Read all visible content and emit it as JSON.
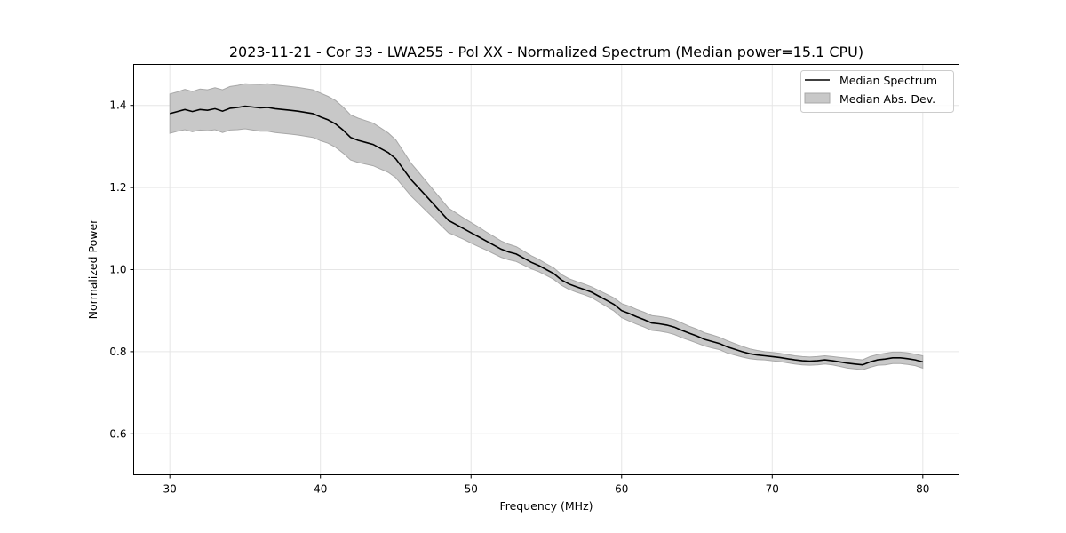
{
  "chart_data": {
    "type": "line",
    "title": "2023-11-21 - Cor 33 - LWA255 - Pol XX - Normalized Spectrum (Median power=15.1 CPU)",
    "xlabel": "Frequency (MHz)",
    "ylabel": "Normalized Power",
    "xlim": [
      27.6,
      82.4
    ],
    "ylim": [
      0.5,
      1.5
    ],
    "xticks": [
      30,
      40,
      50,
      60,
      70,
      80
    ],
    "yticks": [
      0.6,
      0.8,
      1.0,
      1.2,
      1.4
    ],
    "xtick_labels": [
      "30",
      "40",
      "50",
      "60",
      "70",
      "80"
    ],
    "ytick_labels": [
      "0.6",
      "0.8",
      "1.0",
      "1.2",
      "1.4"
    ],
    "grid": true,
    "legend_position": "top-right",
    "legend": [
      "Median Spectrum",
      "Median Abs. Dev."
    ],
    "colors": {
      "line": "#000000",
      "band": "#c8c8c8",
      "band_edge": "#a8a8a8",
      "grid": "#e6e6e6",
      "axes": "#000000"
    },
    "series": [
      {
        "name": "Median Spectrum",
        "x": [
          30,
          30.5,
          31,
          31.5,
          32,
          32.5,
          33,
          33.5,
          34,
          34.5,
          35,
          35.5,
          36,
          36.5,
          37,
          37.5,
          38,
          38.5,
          39,
          39.5,
          40,
          40.5,
          41,
          41.5,
          42,
          42.5,
          43,
          43.5,
          44,
          44.5,
          45,
          45.5,
          46,
          46.5,
          47,
          47.5,
          48,
          48.5,
          49,
          49.5,
          50,
          50.5,
          51,
          51.5,
          52,
          52.5,
          53,
          53.5,
          54,
          54.5,
          55,
          55.5,
          56,
          56.5,
          57,
          57.5,
          58,
          58.5,
          59,
          59.5,
          60,
          60.5,
          61,
          61.5,
          62,
          62.5,
          63,
          63.5,
          64,
          64.5,
          65,
          65.5,
          66,
          66.5,
          67,
          67.5,
          68,
          68.5,
          69,
          69.5,
          70,
          70.5,
          71,
          71.5,
          72,
          72.5,
          73,
          73.5,
          74,
          74.5,
          75,
          75.5,
          76,
          76.5,
          77,
          77.5,
          78,
          78.5,
          79,
          79.5,
          80
        ],
        "values": [
          1.38,
          1.385,
          1.39,
          1.385,
          1.39,
          1.388,
          1.392,
          1.386,
          1.393,
          1.395,
          1.398,
          1.396,
          1.394,
          1.395,
          1.392,
          1.39,
          1.388,
          1.386,
          1.383,
          1.38,
          1.372,
          1.365,
          1.355,
          1.34,
          1.322,
          1.315,
          1.31,
          1.305,
          1.295,
          1.285,
          1.27,
          1.245,
          1.22,
          1.2,
          1.18,
          1.16,
          1.14,
          1.12,
          1.11,
          1.1,
          1.09,
          1.08,
          1.07,
          1.06,
          1.05,
          1.043,
          1.038,
          1.028,
          1.018,
          1.01,
          1.0,
          0.99,
          0.975,
          0.965,
          0.958,
          0.952,
          0.945,
          0.935,
          0.925,
          0.915,
          0.9,
          0.893,
          0.885,
          0.878,
          0.87,
          0.868,
          0.865,
          0.86,
          0.852,
          0.845,
          0.838,
          0.83,
          0.825,
          0.82,
          0.812,
          0.806,
          0.8,
          0.795,
          0.792,
          0.79,
          0.788,
          0.786,
          0.783,
          0.78,
          0.778,
          0.777,
          0.778,
          0.78,
          0.778,
          0.775,
          0.772,
          0.77,
          0.768,
          0.775,
          0.78,
          0.782,
          0.785,
          0.785,
          0.783,
          0.78,
          0.775
        ]
      },
      {
        "name": "Median Abs. Dev.",
        "x": [
          30,
          30.5,
          31,
          31.5,
          32,
          32.5,
          33,
          33.5,
          34,
          34.5,
          35,
          35.5,
          36,
          36.5,
          37,
          37.5,
          38,
          38.5,
          39,
          39.5,
          40,
          40.5,
          41,
          41.5,
          42,
          42.5,
          43,
          43.5,
          44,
          44.5,
          45,
          45.5,
          46,
          46.5,
          47,
          47.5,
          48,
          48.5,
          49,
          49.5,
          50,
          50.5,
          51,
          51.5,
          52,
          52.5,
          53,
          53.5,
          54,
          54.5,
          55,
          55.5,
          56,
          56.5,
          57,
          57.5,
          58,
          58.5,
          59,
          59.5,
          60,
          60.5,
          61,
          61.5,
          62,
          62.5,
          63,
          63.5,
          64,
          64.5,
          65,
          65.5,
          66,
          66.5,
          67,
          67.5,
          68,
          68.5,
          69,
          69.5,
          70,
          70.5,
          71,
          71.5,
          72,
          72.5,
          73,
          73.5,
          74,
          74.5,
          75,
          75.5,
          76,
          76.5,
          77,
          77.5,
          78,
          78.5,
          79,
          79.5,
          80
        ],
        "deviation": [
          0.048,
          0.048,
          0.049,
          0.049,
          0.05,
          0.05,
          0.051,
          0.052,
          0.053,
          0.054,
          0.055,
          0.056,
          0.057,
          0.058,
          0.058,
          0.058,
          0.058,
          0.058,
          0.058,
          0.058,
          0.058,
          0.057,
          0.057,
          0.056,
          0.055,
          0.054,
          0.053,
          0.052,
          0.05,
          0.048,
          0.046,
          0.043,
          0.04,
          0.038,
          0.036,
          0.034,
          0.032,
          0.03,
          0.028,
          0.026,
          0.025,
          0.024,
          0.022,
          0.021,
          0.02,
          0.019,
          0.018,
          0.017,
          0.016,
          0.015,
          0.014,
          0.014,
          0.013,
          0.013,
          0.013,
          0.013,
          0.013,
          0.014,
          0.015,
          0.016,
          0.017,
          0.018,
          0.018,
          0.018,
          0.018,
          0.018,
          0.018,
          0.018,
          0.018,
          0.017,
          0.017,
          0.016,
          0.016,
          0.015,
          0.015,
          0.014,
          0.013,
          0.012,
          0.011,
          0.01,
          0.01,
          0.01,
          0.01,
          0.01,
          0.01,
          0.01,
          0.01,
          0.01,
          0.01,
          0.011,
          0.012,
          0.012,
          0.012,
          0.013,
          0.013,
          0.014,
          0.014,
          0.014,
          0.014,
          0.014,
          0.015
        ]
      }
    ]
  }
}
